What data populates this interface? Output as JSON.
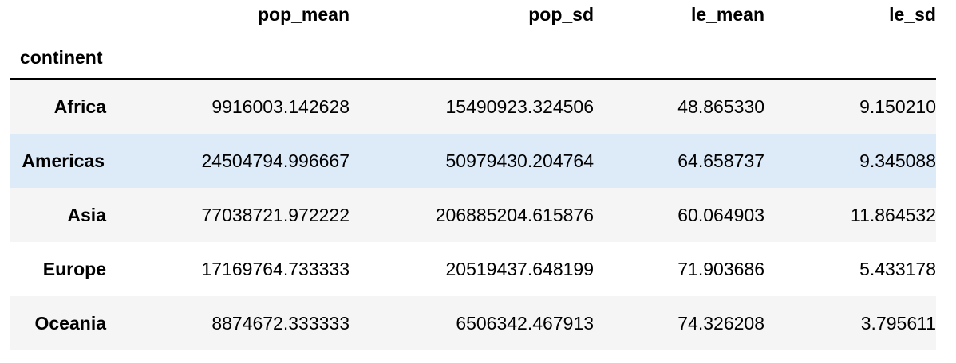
{
  "table": {
    "columns": [
      "pop_mean",
      "pop_sd",
      "le_mean",
      "le_sd"
    ],
    "index_name": "continent",
    "rows": [
      {
        "index": "Africa",
        "values": [
          "9916003.142628",
          "15490923.324506",
          "48.865330",
          "9.150210"
        ]
      },
      {
        "index": "Americas",
        "values": [
          "24504794.996667",
          "50979430.204764",
          "64.658737",
          "9.345088"
        ]
      },
      {
        "index": "Asia",
        "values": [
          "77038721.972222",
          "206885204.615876",
          "60.064903",
          "11.864532"
        ]
      },
      {
        "index": "Europe",
        "values": [
          "17169764.733333",
          "20519437.648199",
          "71.903686",
          "5.433178"
        ]
      },
      {
        "index": "Oceania",
        "values": [
          "8874672.333333",
          "6506342.467913",
          "74.326208",
          "3.795611"
        ]
      }
    ],
    "highlighted_row": "Americas",
    "colors": {
      "stripe": "#f5f5f5",
      "highlight": "#ddebf9",
      "rule": "#000000"
    }
  }
}
